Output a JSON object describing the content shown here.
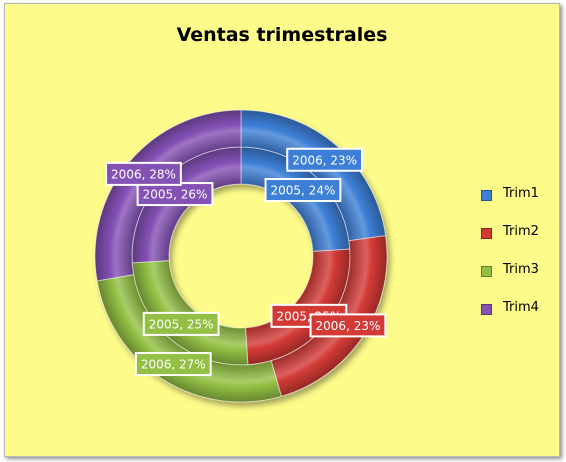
{
  "chart_data": {
    "type": "doughnut",
    "title": "Ventas trimestrales",
    "categories": [
      "Trim1",
      "Trim2",
      "Trim3",
      "Trim4"
    ],
    "series": [
      {
        "name": "2005",
        "values": [
          24,
          25,
          25,
          26
        ],
        "ring": "inner"
      },
      {
        "name": "2006",
        "values": [
          23,
          23,
          27,
          28
        ],
        "ring": "outer"
      }
    ],
    "data_labels": [
      [
        "2005, 24%",
        "2005, 25%",
        "2005, 25%",
        "2005, 26%"
      ],
      [
        "2006, 23%",
        "2006, 23%",
        "2006, 27%",
        "2006, 28%"
      ]
    ],
    "colors": [
      "#3d7fd6",
      "#d33a36",
      "#93c044",
      "#8451b5"
    ],
    "legend": {
      "position": "right",
      "entries": [
        "Trim1",
        "Trim2",
        "Trim3",
        "Trim4"
      ]
    },
    "background": "#fdfb8a"
  }
}
